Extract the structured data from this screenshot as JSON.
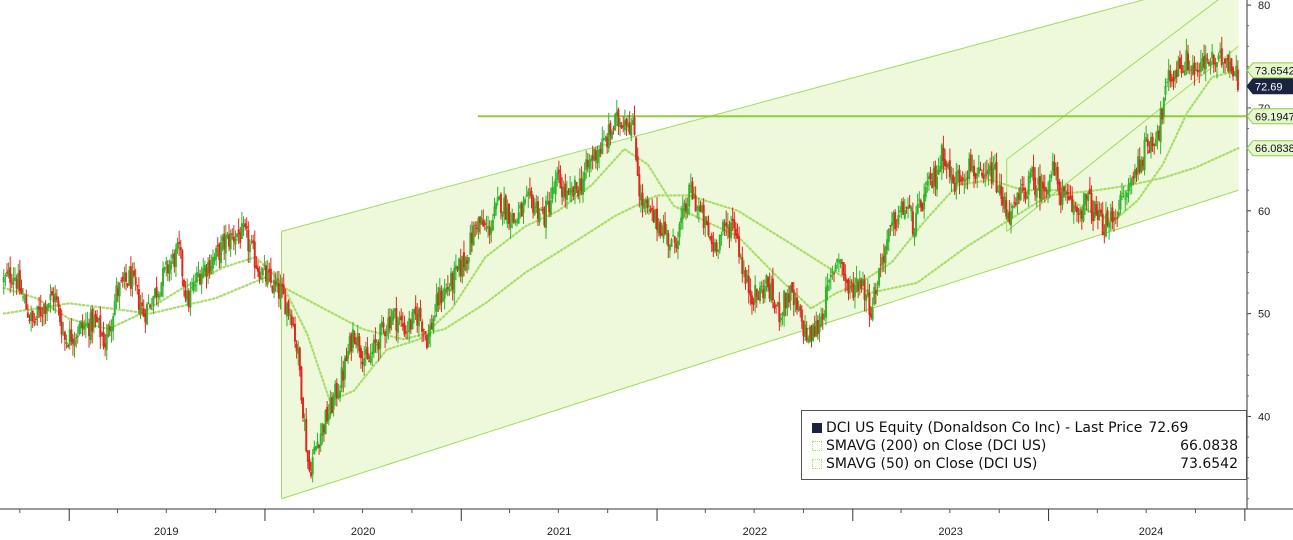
{
  "chart_data": {
    "type": "line",
    "title": "",
    "security": "DCI US Equity",
    "x_ticks": [
      "2019",
      "2020",
      "2021",
      "2022",
      "2023",
      "2024"
    ],
    "y_ticks": [
      "80",
      "70",
      "60",
      "50",
      "40"
    ],
    "ylim": [
      31,
      80.5
    ],
    "grid": false,
    "legend_position": "bottom-right",
    "series": [
      {
        "name": "DCI US Equity (Donaldson Co Inc) - Last Price",
        "last_value": "72.69",
        "color": "#e0281e",
        "up_color": "#2fb52a",
        "points": [
          [
            "2018-09-01",
            53.2
          ],
          [
            "2018-09-20",
            54.0
          ],
          [
            "2018-10-10",
            51.0
          ],
          [
            "2018-10-25",
            49.0
          ],
          [
            "2018-11-15",
            50.8
          ],
          [
            "2018-12-05",
            51.8
          ],
          [
            "2018-12-24",
            47.5
          ],
          [
            "2019-01-20",
            48.5
          ],
          [
            "2019-02-20",
            49.2
          ],
          [
            "2019-03-10",
            47.0
          ],
          [
            "2019-03-30",
            52.0
          ],
          [
            "2019-04-25",
            53.5
          ],
          [
            "2019-05-20",
            50.0
          ],
          [
            "2019-06-15",
            52.5
          ],
          [
            "2019-07-10",
            55.0
          ],
          [
            "2019-07-25",
            56.0
          ],
          [
            "2019-08-10",
            51.0
          ],
          [
            "2019-09-01",
            54.0
          ],
          [
            "2019-10-01",
            55.5
          ],
          [
            "2019-10-20",
            57.0
          ],
          [
            "2019-11-10",
            57.8
          ],
          [
            "2019-11-25",
            57.5
          ],
          [
            "2019-12-20",
            54.5
          ],
          [
            "2020-01-10",
            53.0
          ],
          [
            "2020-01-30",
            52.0
          ],
          [
            "2020-02-20",
            50.0
          ],
          [
            "2020-03-05",
            45.0
          ],
          [
            "2020-03-23",
            34.5
          ],
          [
            "2020-04-10",
            38.0
          ],
          [
            "2020-04-30",
            40.5
          ],
          [
            "2020-05-25",
            44.0
          ],
          [
            "2020-06-15",
            48.5
          ],
          [
            "2020-07-10",
            45.0
          ],
          [
            "2020-07-30",
            47.5
          ],
          [
            "2020-08-25",
            50.0
          ],
          [
            "2020-09-20",
            48.5
          ],
          [
            "2020-10-15",
            50.0
          ],
          [
            "2020-10-30",
            47.5
          ],
          [
            "2020-11-20",
            51.5
          ],
          [
            "2020-12-15",
            53.0
          ],
          [
            "2021-01-10",
            55.5
          ],
          [
            "2021-01-30",
            59.0
          ],
          [
            "2021-02-20",
            58.0
          ],
          [
            "2021-03-15",
            61.0
          ],
          [
            "2021-04-10",
            59.0
          ],
          [
            "2021-05-10",
            61.0
          ],
          [
            "2021-06-05",
            59.5
          ],
          [
            "2021-06-30",
            63.0
          ],
          [
            "2021-07-20",
            61.0
          ],
          [
            "2021-08-15",
            63.0
          ],
          [
            "2021-09-05",
            65.5
          ],
          [
            "2021-09-25",
            66.5
          ],
          [
            "2021-10-15",
            68.5
          ],
          [
            "2021-11-05",
            69.2
          ],
          [
            "2021-11-20",
            67.5
          ],
          [
            "2021-12-01",
            61.0
          ],
          [
            "2021-12-20",
            59.5
          ],
          [
            "2022-01-10",
            58.5
          ],
          [
            "2022-01-30",
            56.5
          ],
          [
            "2022-02-20",
            59.5
          ],
          [
            "2022-03-05",
            62.0
          ],
          [
            "2022-03-25",
            59.5
          ],
          [
            "2022-04-15",
            56.5
          ],
          [
            "2022-05-05",
            58.0
          ],
          [
            "2022-05-25",
            59.0
          ],
          [
            "2022-06-15",
            53.0
          ],
          [
            "2022-07-05",
            51.5
          ],
          [
            "2022-07-25",
            53.0
          ],
          [
            "2022-08-15",
            50.0
          ],
          [
            "2022-09-05",
            52.0
          ],
          [
            "2022-09-25",
            49.5
          ],
          [
            "2022-10-10",
            47.5
          ],
          [
            "2022-10-30",
            49.0
          ],
          [
            "2022-11-20",
            53.0
          ],
          [
            "2022-12-05",
            56.0
          ],
          [
            "2022-12-25",
            52.0
          ],
          [
            "2023-01-15",
            53.5
          ],
          [
            "2023-02-05",
            50.5
          ],
          [
            "2023-02-25",
            55.5
          ],
          [
            "2023-03-20",
            59.0
          ],
          [
            "2023-04-10",
            60.5
          ],
          [
            "2023-04-25",
            58.5
          ],
          [
            "2023-05-15",
            61.5
          ],
          [
            "2023-06-05",
            63.5
          ],
          [
            "2023-06-20",
            66.0
          ],
          [
            "2023-07-05",
            62.5
          ],
          [
            "2023-07-20",
            63.5
          ],
          [
            "2023-08-10",
            64.5
          ],
          [
            "2023-08-30",
            62.5
          ],
          [
            "2023-09-20",
            64.0
          ],
          [
            "2023-10-05",
            61.0
          ],
          [
            "2023-10-25",
            59.5
          ],
          [
            "2023-11-10",
            61.5
          ],
          [
            "2023-11-30",
            63.0
          ],
          [
            "2023-12-20",
            62.0
          ],
          [
            "2024-01-10",
            64.0
          ],
          [
            "2024-01-25",
            61.5
          ],
          [
            "2024-02-10",
            60.5
          ],
          [
            "2024-02-25",
            60.0
          ],
          [
            "2024-03-15",
            61.0
          ],
          [
            "2024-04-05",
            59.0
          ],
          [
            "2024-04-20",
            58.5
          ],
          [
            "2024-05-05",
            60.0
          ],
          [
            "2024-05-25",
            61.5
          ],
          [
            "2024-06-15",
            64.5
          ],
          [
            "2024-07-05",
            66.5
          ],
          [
            "2024-07-25",
            68.0
          ],
          [
            "2024-08-10",
            72.5
          ],
          [
            "2024-08-30",
            74.0
          ],
          [
            "2024-09-15",
            74.5
          ],
          [
            "2024-10-05",
            73.5
          ],
          [
            "2024-10-25",
            74.8
          ],
          [
            "2024-11-10",
            74.0
          ],
          [
            "2024-11-25",
            75.3
          ],
          [
            "2024-12-10",
            73.8
          ],
          [
            "2024-12-20",
            72.69
          ]
        ]
      },
      {
        "name": "SMAVG (200)  on Close (DCI US)",
        "last_value": "66.0838",
        "color": "#a8dd6a",
        "points": [
          [
            "2018-09-01",
            50.0
          ],
          [
            "2019-01-01",
            51.0
          ],
          [
            "2019-06-01",
            50.0
          ],
          [
            "2019-10-01",
            51.5
          ],
          [
            "2020-01-01",
            53.5
          ],
          [
            "2020-04-01",
            51.0
          ],
          [
            "2020-07-01",
            48.5
          ],
          [
            "2020-09-15",
            47.5
          ],
          [
            "2020-12-01",
            48.5
          ],
          [
            "2021-02-15",
            51.0
          ],
          [
            "2021-05-01",
            54.0
          ],
          [
            "2021-08-01",
            57.0
          ],
          [
            "2021-10-15",
            59.5
          ],
          [
            "2022-01-01",
            61.5
          ],
          [
            "2022-03-01",
            61.5
          ],
          [
            "2022-06-01",
            60.0
          ],
          [
            "2022-09-01",
            57.0
          ],
          [
            "2022-12-01",
            54.0
          ],
          [
            "2023-02-01",
            52.0
          ],
          [
            "2023-05-01",
            53.0
          ],
          [
            "2023-08-01",
            56.5
          ],
          [
            "2023-10-01",
            58.5
          ],
          [
            "2024-01-01",
            61.5
          ],
          [
            "2024-04-01",
            62.0
          ],
          [
            "2024-06-01",
            62.5
          ],
          [
            "2024-08-01",
            63.2
          ],
          [
            "2024-10-01",
            64.2
          ],
          [
            "2024-12-20",
            66.0838
          ]
        ]
      },
      {
        "name": "SMAVG (50)  on Close (DCI US)",
        "last_value": "73.6542",
        "color": "#a8dd6a",
        "points": [
          [
            "2018-09-01",
            52.5
          ],
          [
            "2018-11-01",
            51.5
          ],
          [
            "2019-01-01",
            49.5
          ],
          [
            "2019-03-15",
            48.5
          ],
          [
            "2019-05-15",
            50.0
          ],
          [
            "2019-08-01",
            52.5
          ],
          [
            "2019-10-15",
            54.5
          ],
          [
            "2019-12-15",
            55.5
          ],
          [
            "2020-02-01",
            53.0
          ],
          [
            "2020-03-20",
            48.0
          ],
          [
            "2020-05-01",
            41.5
          ],
          [
            "2020-06-15",
            42.5
          ],
          [
            "2020-08-15",
            46.5
          ],
          [
            "2020-10-15",
            47.5
          ],
          [
            "2020-12-15",
            50.5
          ],
          [
            "2021-02-15",
            55.5
          ],
          [
            "2021-05-01",
            58.5
          ],
          [
            "2021-07-01",
            60.0
          ],
          [
            "2021-09-01",
            62.5
          ],
          [
            "2021-11-01",
            66.0
          ],
          [
            "2021-12-15",
            64.5
          ],
          [
            "2022-02-01",
            60.5
          ],
          [
            "2022-04-01",
            59.0
          ],
          [
            "2022-06-01",
            57.5
          ],
          [
            "2022-08-15",
            53.5
          ],
          [
            "2022-10-15",
            50.5
          ],
          [
            "2022-12-01",
            52.0
          ],
          [
            "2023-01-15",
            53.0
          ],
          [
            "2023-03-15",
            55.0
          ],
          [
            "2023-05-15",
            59.0
          ],
          [
            "2023-07-15",
            62.5
          ],
          [
            "2023-09-15",
            63.0
          ],
          [
            "2023-11-15",
            62.0
          ],
          [
            "2024-01-15",
            62.0
          ],
          [
            "2024-03-15",
            60.0
          ],
          [
            "2024-05-01",
            59.0
          ],
          [
            "2024-06-15",
            61.0
          ],
          [
            "2024-08-01",
            64.5
          ],
          [
            "2024-09-15",
            69.5
          ],
          [
            "2024-11-01",
            73.0
          ],
          [
            "2024-12-20",
            73.6542
          ]
        ]
      }
    ],
    "annotations": [
      {
        "type": "horizontal_line",
        "y": 69.1947,
        "label": "69.1947",
        "color": "#8ccf3e"
      },
      {
        "type": "channel",
        "from": [
          "2020-02-01",
          58.0
        ],
        "to": [
          "2024-12-20",
          83.0
        ],
        "lower_from": [
          "2020-02-01",
          32.0
        ],
        "lower_to": [
          "2024-12-20",
          62.0
        ],
        "color": "#9fdc5a"
      },
      {
        "type": "channel",
        "from": [
          "2023-10-15",
          65.0
        ],
        "to": [
          "2024-12-20",
          82.0
        ],
        "lower_from": [
          "2023-10-15",
          58.0
        ],
        "lower_to": [
          "2024-12-20",
          76.0
        ],
        "color": "#9fdc5a"
      }
    ],
    "value_tags": [
      {
        "label": "73.6542",
        "value": 73.6542,
        "style": "light"
      },
      {
        "label": "72.69",
        "value": 72.69,
        "style": "dark"
      },
      {
        "label": "69.1947",
        "value": 69.1947,
        "style": "light"
      },
      {
        "label": "66.0838",
        "value": 66.0838,
        "style": "light"
      }
    ]
  },
  "legend": {
    "rows": [
      {
        "name": "DCI US Equity (Donaldson Co Inc) - Last Price",
        "value": "72.69",
        "swatch": "#1a2440"
      },
      {
        "name": "SMAVG (200)  on Close (DCI US)",
        "value": "66.0838",
        "swatch": "#a8dd6a"
      },
      {
        "name": "SMAVG (50)  on Close (DCI US)",
        "value": "73.6542",
        "swatch": "#a8dd6a"
      }
    ]
  },
  "colors": {
    "channel_fill": "#eef9dc",
    "channel_edge": "#9fdc5a",
    "up": "#2fb52a",
    "down": "#e0281e",
    "tag_dark": "#1a2440"
  }
}
